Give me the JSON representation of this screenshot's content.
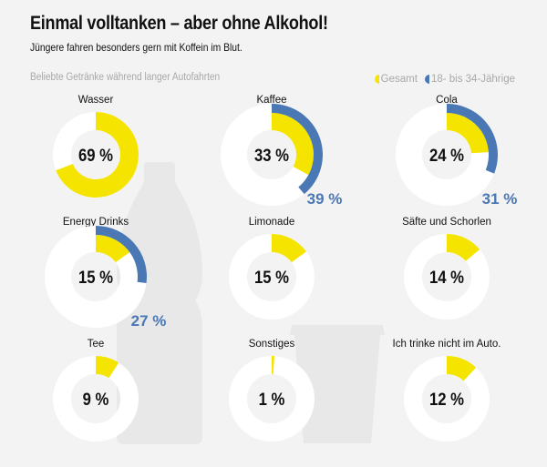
{
  "header": {
    "title": "Einmal volltanken – aber ohne Alkohol!",
    "subtitle": "Jüngere fahren besonders gern mit Koffein im Blut.",
    "section_label": "Beliebte Getränke während langer Autofahrten"
  },
  "legend": [
    {
      "label": "Gesamt",
      "color": "#f5e400"
    },
    {
      "label": "18- bis 34-Jährige",
      "color": "#4a78b5"
    }
  ],
  "colors": {
    "total": "#f5e400",
    "young": "#4a78b5",
    "ring_background": "#ffffff",
    "silhouette": "#e8e8e8",
    "background": "#f3f3f3"
  },
  "decorations": [
    "bottle-silhouette",
    "cup-silhouette"
  ],
  "chart_data": {
    "type": "donut",
    "title": "Beliebte Getränke während langer Autofahrten",
    "unit": "%",
    "series": [
      {
        "name": "Gesamt",
        "values": [
          69,
          33,
          24,
          15,
          15,
          14,
          9,
          1,
          12
        ]
      },
      {
        "name": "18- bis 34-Jährige",
        "values": [
          null,
          39,
          31,
          27,
          null,
          null,
          null,
          null,
          null
        ]
      }
    ],
    "categories": [
      "Wasser",
      "Kaffee",
      "Cola",
      "Energy Drinks",
      "Limonade",
      "Säfte und Schorlen",
      "Tee",
      "Sonstiges",
      "Ich trinke nicht im Auto."
    ],
    "items": [
      {
        "label": "Wasser",
        "total": 69,
        "total_text": "69 %",
        "young": null,
        "young_text": null
      },
      {
        "label": "Kaffee",
        "total": 33,
        "total_text": "33 %",
        "young": 39,
        "young_text": "39 %"
      },
      {
        "label": "Cola",
        "total": 24,
        "total_text": "24 %",
        "young": 31,
        "young_text": "31 %"
      },
      {
        "label": "Energy Drinks",
        "total": 15,
        "total_text": "15 %",
        "young": 27,
        "young_text": "27 %"
      },
      {
        "label": "Limonade",
        "total": 15,
        "total_text": "15 %",
        "young": null,
        "young_text": null
      },
      {
        "label": "Säfte und Schorlen",
        "total": 14,
        "total_text": "14 %",
        "young": null,
        "young_text": null
      },
      {
        "label": "Tee",
        "total": 9,
        "total_text": "9 %",
        "young": null,
        "young_text": null
      },
      {
        "label": "Sonstiges",
        "total": 1,
        "total_text": "1 %",
        "young": null,
        "young_text": null
      },
      {
        "label": "Ich trinke nicht im Auto.",
        "total": 12,
        "total_text": "12 %",
        "young": null,
        "young_text": null
      }
    ],
    "range": [
      0,
      100
    ]
  }
}
